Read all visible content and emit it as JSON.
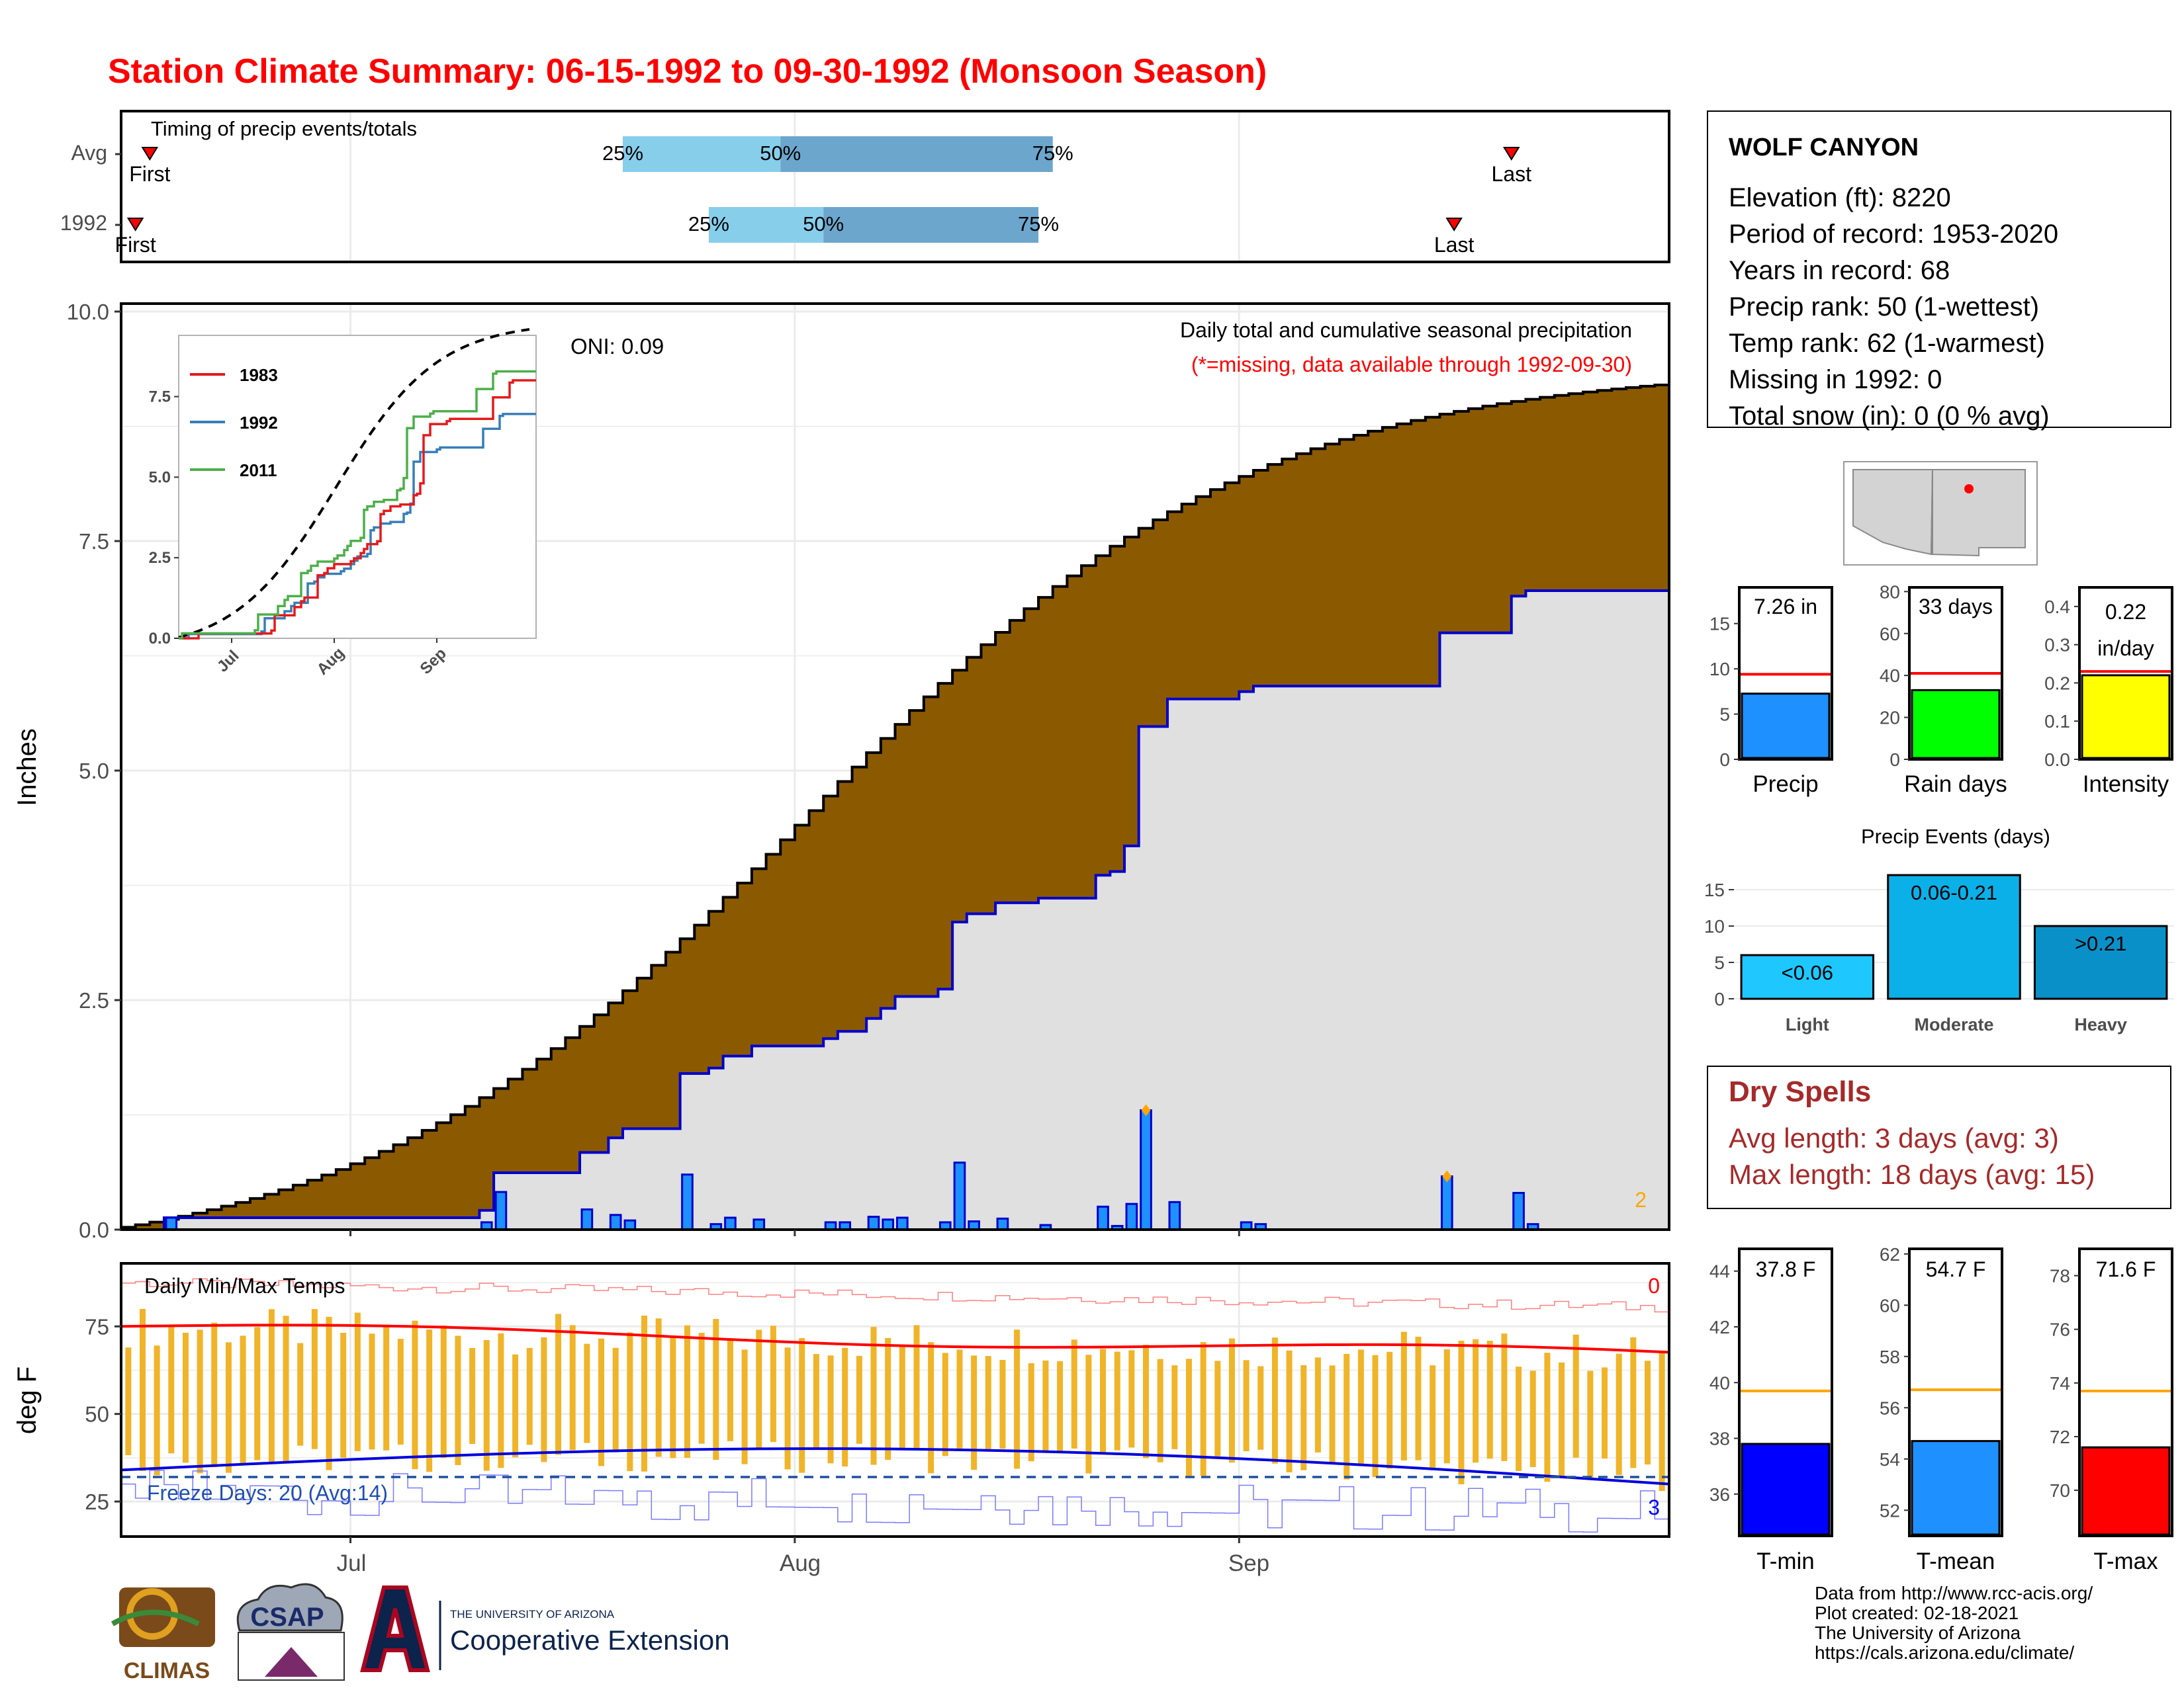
{
  "title": "Station Climate Summary: 06-15-1992 to 09-30-1992 (Monsoon Season)",
  "timing": {
    "panel_label": "Timing of precip events/totals",
    "rows": [
      {
        "label": "Avg",
        "first": "First",
        "last": "Last",
        "p25": "25%",
        "p50": "50%",
        "p75": "75%",
        "first_date": "1992-06-17",
        "p25_date": "1992-07-20",
        "p50_date": "1992-07-31",
        "p75_date": "1992-08-19",
        "last_date": "1992-09-20"
      },
      {
        "label": "1992",
        "first": "First",
        "last": "Last",
        "p25": "25%",
        "p50": "50%",
        "p75": "75%",
        "first_date": "1992-06-16",
        "p25_date": "1992-07-26",
        "p50_date": "1992-08-03",
        "p75_date": "1992-08-18",
        "last_date": "1992-09-16"
      }
    ]
  },
  "station": {
    "name": "WOLF CANYON",
    "lines": [
      "Elevation (ft): 8220",
      "Period of record: 1953-2020",
      "Years in record: 68",
      "Precip rank: 50 (1-wettest)",
      "Temp rank: 62 (1-warmest)",
      "Missing in 1992: 0",
      "Total snow (in): 0 (0 % avg)"
    ]
  },
  "main_panel": {
    "ylabel": "Inches",
    "oni": "ONI: 0.09",
    "subtitle": "Daily total and cumulative seasonal precipitation",
    "note": "(*=missing, data available through 1992-09-30)",
    "corner_count": "2",
    "month_labels": [
      "Jul",
      "Aug",
      "Sep"
    ],
    "yticks": [
      "0.0",
      "2.5",
      "5.0",
      "7.5",
      "10.0"
    ]
  },
  "inset": {
    "legend": [
      "1983",
      "1992",
      "2011"
    ],
    "yticks": [
      "0.0",
      "2.5",
      "5.0",
      "7.5"
    ],
    "xticks": [
      "Jul",
      "Aug",
      "Sep"
    ]
  },
  "temp_panel": {
    "ylabel": "deg F",
    "label": "Daily Min/Max Temps",
    "freeze": "Freeze Days: 20 (Avg:14)",
    "count_top": "0",
    "count_bottom": "3",
    "yticks": [
      "25",
      "50",
      "75"
    ]
  },
  "season_bars": [
    {
      "label": "Precip",
      "value_text": "7.26 in",
      "value": 7.26,
      "avg": 9.4,
      "ymax": 19,
      "ticks": [
        "0",
        "5",
        "10",
        "15"
      ],
      "color": "#1e90ff"
    },
    {
      "label": "Rain days",
      "value_text": "33 days",
      "value": 33,
      "avg": 41,
      "ymax": 82,
      "ticks": [
        "0",
        "20",
        "40",
        "60",
        "80"
      ],
      "color": "#00ff00"
    },
    {
      "label": "Intensity",
      "value_text": "0.22 in/day",
      "value_line1": "0.22",
      "value_line2": "in/day",
      "value": 0.22,
      "avg": 0.23,
      "ymax": 0.45,
      "ticks": [
        "0.0",
        "0.1",
        "0.2",
        "0.3",
        "0.4"
      ],
      "color": "#ffff00"
    }
  ],
  "events": {
    "title": "Precip Events (days)",
    "categories": [
      "Light",
      "Moderate",
      "Heavy"
    ],
    "labels": [
      "<0.06",
      "0.06-0.21",
      ">0.21"
    ],
    "values": [
      6,
      17,
      10
    ],
    "ticks": [
      "0",
      "5",
      "10",
      "15"
    ],
    "colors": [
      "#1ec8ff",
      "#0bb0e8",
      "#0a90c8"
    ]
  },
  "dry_spells": {
    "title": "Dry Spells",
    "avg": "Avg length: 3 days (avg: 3)",
    "max": "Max length: 18 days (avg: 15)"
  },
  "temp_bars": [
    {
      "label": "T-min",
      "value_text": "37.8 F",
      "value": 37.8,
      "avg": 39.7,
      "ymin": 34.5,
      "ymax": 44.8,
      "ticks": [
        "36",
        "38",
        "40",
        "42",
        "44"
      ],
      "color": "#0000ff"
    },
    {
      "label": "T-mean",
      "value_text": "54.7 F",
      "value": 54.7,
      "avg": 56.7,
      "ymin": 51,
      "ymax": 62.2,
      "ticks": [
        "52",
        "54",
        "56",
        "58",
        "60",
        "62"
      ],
      "color": "#1e90ff"
    },
    {
      "label": "T-max",
      "value_text": "71.6 F",
      "value": 71.6,
      "avg": 73.7,
      "ymin": 68.3,
      "ymax": 79,
      "ticks": [
        "70",
        "72",
        "74",
        "76",
        "78"
      ],
      "color": "#ff0000"
    }
  ],
  "footer": {
    "logos": [
      "CLIMAS",
      "CSAP",
      "THE UNIVERSITY OF ARIZONA",
      "Cooperative Extension"
    ],
    "credits": [
      "Data from http://www.rcc-acis.org/",
      "Plot created: 02-18-2021",
      "The University of Arizona",
      "https://cals.arizona.edu/climate/"
    ]
  },
  "chart_data": {
    "type": "area",
    "x_start": "1992-06-15",
    "x_end": "1992-09-30",
    "ylim": [
      0,
      10
    ],
    "ylabel": "Inches",
    "avg_cumulative_end": 9.2,
    "daily_precip": [
      {
        "date": "1992-06-18",
        "in": 0.13
      },
      {
        "date": "1992-07-10",
        "in": 0.08
      },
      {
        "date": "1992-07-11",
        "in": 0.41
      },
      {
        "date": "1992-07-17",
        "in": 0.22
      },
      {
        "date": "1992-07-19",
        "in": 0.16
      },
      {
        "date": "1992-07-20",
        "in": 0.1
      },
      {
        "date": "1992-07-24",
        "in": 0.6
      },
      {
        "date": "1992-07-26",
        "in": 0.06
      },
      {
        "date": "1992-07-27",
        "in": 0.13
      },
      {
        "date": "1992-07-29",
        "in": 0.11
      },
      {
        "date": "1992-08-03",
        "in": 0.08
      },
      {
        "date": "1992-08-04",
        "in": 0.08
      },
      {
        "date": "1992-08-06",
        "in": 0.14
      },
      {
        "date": "1992-08-07",
        "in": 0.11
      },
      {
        "date": "1992-08-08",
        "in": 0.13
      },
      {
        "date": "1992-08-11",
        "in": 0.08
      },
      {
        "date": "1992-08-12",
        "in": 0.73
      },
      {
        "date": "1992-08-13",
        "in": 0.09
      },
      {
        "date": "1992-08-15",
        "in": 0.12
      },
      {
        "date": "1992-08-18",
        "in": 0.05
      },
      {
        "date": "1992-08-22",
        "in": 0.25
      },
      {
        "date": "1992-08-23",
        "in": 0.04
      },
      {
        "date": "1992-08-24",
        "in": 0.28
      },
      {
        "date": "1992-08-25",
        "in": 1.3
      },
      {
        "date": "1992-08-27",
        "in": 0.3
      },
      {
        "date": "1992-09-01",
        "in": 0.08
      },
      {
        "date": "1992-09-02",
        "in": 0.06
      },
      {
        "date": "1992-09-15",
        "in": 0.58
      },
      {
        "date": "1992-09-20",
        "in": 0.4
      },
      {
        "date": "1992-09-21",
        "in": 0.06
      }
    ],
    "tmax_mean_start": 75,
    "tmax_mean_end": 67,
    "tmin_mean_start": 34,
    "tmin_mean_end": 30,
    "freeze_line": 32
  }
}
